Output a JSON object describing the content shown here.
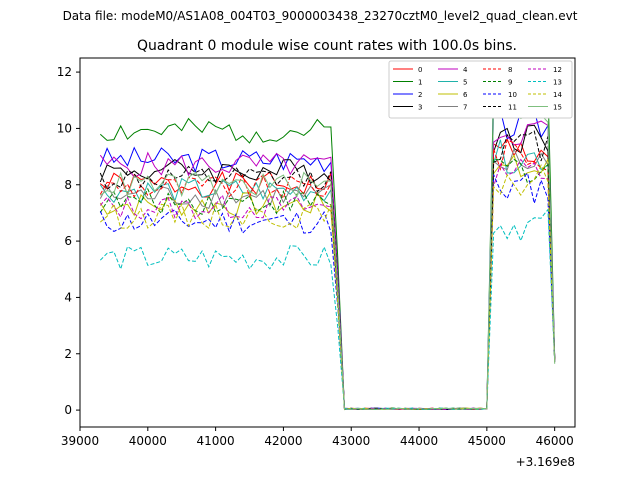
{
  "chart_data": {
    "type": "line",
    "suptitle": "Data file: modeM0/AS1A08_004T03_9000003438_23270cztM0_level2_quad_clean.evt",
    "title": "Quadrant 0 module wise count rates with 100.0s bins.",
    "xlabel": "",
    "ylabel": "",
    "offset_label": "+3.169e8",
    "xlim": [
      39000,
      46300
    ],
    "ylim": [
      -0.6,
      12.5
    ],
    "xticks": [
      "39000",
      "40000",
      "41000",
      "42000",
      "43000",
      "44000",
      "45000",
      "46000"
    ],
    "yticks": [
      "0",
      "2",
      "4",
      "6",
      "8",
      "10",
      "12"
    ],
    "grid": false,
    "legend_position": "top-right",
    "x": [
      39300,
      39400,
      39500,
      39600,
      39700,
      39800,
      39900,
      40000,
      40100,
      40200,
      40300,
      40400,
      40500,
      40600,
      40700,
      40800,
      40900,
      41000,
      41100,
      41200,
      41300,
      41400,
      41500,
      41600,
      41700,
      41800,
      41900,
      42000,
      42100,
      42200,
      42300,
      42400,
      42500,
      42600,
      42700,
      42800,
      42900,
      43000,
      43100,
      43200,
      43300,
      43400,
      43500,
      43600,
      43700,
      43800,
      43900,
      44000,
      44100,
      44200,
      44300,
      44400,
      44500,
      44600,
      44700,
      44800,
      44900,
      45000,
      45100,
      45200,
      45300,
      45400,
      45500,
      45600,
      45700,
      45800,
      45900,
      46000
    ],
    "series": [
      {
        "name": "0",
        "color": "#ff0000",
        "dash": "solid",
        "level": 8.0,
        "seed": 1
      },
      {
        "name": "1",
        "color": "#008000",
        "dash": "solid",
        "level": 9.9,
        "seed": 2
      },
      {
        "name": "2",
        "color": "#0000ff",
        "dash": "solid",
        "level": 8.9,
        "seed": 3
      },
      {
        "name": "3",
        "color": "#000000",
        "dash": "solid",
        "level": 8.5,
        "seed": 4
      },
      {
        "name": "4",
        "color": "#bf00bf",
        "dash": "solid",
        "level": 8.7,
        "seed": 5
      },
      {
        "name": "5",
        "color": "#20b2aa",
        "dash": "solid",
        "level": 7.8,
        "seed": 6
      },
      {
        "name": "6",
        "color": "#bfbf00",
        "dash": "solid",
        "level": 7.3,
        "seed": 7
      },
      {
        "name": "7",
        "color": "#808080",
        "dash": "solid",
        "level": 7.6,
        "seed": 8
      },
      {
        "name": "8",
        "color": "#ff0000",
        "dash": "dashed",
        "level": 7.9,
        "seed": 9
      },
      {
        "name": "9",
        "color": "#008000",
        "dash": "dashed",
        "level": 7.4,
        "seed": 10
      },
      {
        "name": "10",
        "color": "#0000ff",
        "dash": "dashed",
        "level": 6.7,
        "seed": 11
      },
      {
        "name": "11",
        "color": "#000000",
        "dash": "dashed",
        "level": 8.2,
        "seed": 12
      },
      {
        "name": "12",
        "color": "#bf00bf",
        "dash": "dashed",
        "level": 7.2,
        "seed": 13
      },
      {
        "name": "13",
        "color": "#00bfbf",
        "dash": "dashed",
        "level": 5.4,
        "seed": 14
      },
      {
        "name": "14",
        "color": "#bfbf00",
        "dash": "dashed",
        "level": 6.9,
        "seed": 15
      },
      {
        "name": "15",
        "color": "#7fbf7f",
        "dash": "solid",
        "level": 8.0,
        "seed": 16
      }
    ]
  }
}
